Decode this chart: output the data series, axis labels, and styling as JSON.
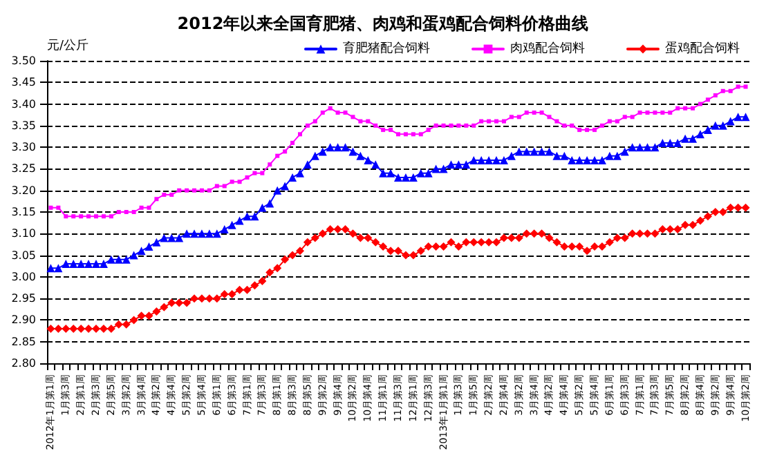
{
  "chart_data": {
    "type": "line",
    "title": "2012年以来全国育肥猪、肉鸡和蛋鸡配合饲料价格曲线",
    "ylabel": "元/公斤",
    "categories": [
      "2012年1月第1周",
      null,
      "1月第3周",
      null,
      "2月第1周",
      null,
      "2月第3周",
      null,
      "2月第5周",
      null,
      "3月第2周",
      null,
      "3月第4周",
      null,
      "4月第2周",
      null,
      "4月第4周",
      null,
      "5月第2周",
      null,
      "5月第4周",
      null,
      "6月第1周",
      null,
      "6月第3周",
      null,
      "7月第1周",
      null,
      "7月第3周",
      null,
      "8月第1周",
      null,
      "8月第3周",
      null,
      "8月第5周",
      null,
      "9月第2周",
      null,
      "9月第4周",
      null,
      "10月第2周",
      null,
      "10月第4周",
      null,
      "11月第1周",
      null,
      "11月第3周",
      null,
      "12月第1周",
      null,
      "12月第3周",
      null,
      "2013年1月第1周",
      null,
      "1月第3周",
      null,
      "1月第5周",
      null,
      "2月第2周",
      null,
      "2月第4周",
      null,
      "3月第2周",
      null,
      "3月第4周",
      null,
      "4月第2周",
      null,
      "4月第4周",
      null,
      "5月第2周",
      null,
      "5月第4周",
      null,
      "6月第1周",
      null,
      "6月第3周",
      null,
      "7月第1周",
      null,
      "7月第3周",
      null,
      "7月第5周",
      null,
      "8月第2周",
      null,
      "8月第4周",
      null,
      "9月第2周",
      null,
      "9月第4周",
      null,
      "10月第2周"
    ],
    "series": [
      {
        "name": "育肥猪配合饲料",
        "color": "#0000ff",
        "marker": "triangle",
        "values": [
          3.02,
          3.02,
          3.03,
          3.03,
          3.03,
          3.03,
          3.03,
          3.03,
          3.04,
          3.04,
          3.04,
          3.05,
          3.06,
          3.07,
          3.08,
          3.09,
          3.09,
          3.09,
          3.1,
          3.1,
          3.1,
          3.1,
          3.1,
          3.11,
          3.12,
          3.13,
          3.14,
          3.14,
          3.16,
          3.17,
          3.2,
          3.21,
          3.23,
          3.24,
          3.26,
          3.28,
          3.29,
          3.3,
          3.3,
          3.3,
          3.29,
          3.28,
          3.27,
          3.26,
          3.24,
          3.24,
          3.23,
          3.23,
          3.23,
          3.24,
          3.24,
          3.25,
          3.25,
          3.26,
          3.26,
          3.26,
          3.27,
          3.27,
          3.27,
          3.27,
          3.27,
          3.28,
          3.29,
          3.29,
          3.29,
          3.29,
          3.29,
          3.28,
          3.28,
          3.27,
          3.27,
          3.27,
          3.27,
          3.27,
          3.28,
          3.28,
          3.29,
          3.3,
          3.3,
          3.3,
          3.3,
          3.31,
          3.31,
          3.31,
          3.32,
          3.32,
          3.33,
          3.34,
          3.35,
          3.35,
          3.36,
          3.37,
          3.37
        ]
      },
      {
        "name": "肉鸡配合饲料",
        "color": "#ff00ff",
        "marker": "square",
        "values": [
          3.16,
          3.16,
          3.14,
          3.14,
          3.14,
          3.14,
          3.14,
          3.14,
          3.14,
          3.15,
          3.15,
          3.15,
          3.16,
          3.16,
          3.18,
          3.19,
          3.19,
          3.2,
          3.2,
          3.2,
          3.2,
          3.2,
          3.21,
          3.21,
          3.22,
          3.22,
          3.23,
          3.24,
          3.24,
          3.26,
          3.28,
          3.29,
          3.31,
          3.33,
          3.35,
          3.36,
          3.38,
          3.39,
          3.38,
          3.38,
          3.37,
          3.36,
          3.36,
          3.35,
          3.34,
          3.34,
          3.33,
          3.33,
          3.33,
          3.33,
          3.34,
          3.35,
          3.35,
          3.35,
          3.35,
          3.35,
          3.35,
          3.36,
          3.36,
          3.36,
          3.36,
          3.37,
          3.37,
          3.38,
          3.38,
          3.38,
          3.37,
          3.36,
          3.35,
          3.35,
          3.34,
          3.34,
          3.34,
          3.35,
          3.36,
          3.36,
          3.37,
          3.37,
          3.38,
          3.38,
          3.38,
          3.38,
          3.38,
          3.39,
          3.39,
          3.39,
          3.4,
          3.41,
          3.42,
          3.43,
          3.43,
          3.44,
          3.44
        ]
      },
      {
        "name": "蛋鸡配合饲料",
        "color": "#ff0000",
        "marker": "diamond",
        "values": [
          2.88,
          2.88,
          2.88,
          2.88,
          2.88,
          2.88,
          2.88,
          2.88,
          2.88,
          2.89,
          2.89,
          2.9,
          2.91,
          2.91,
          2.92,
          2.93,
          2.94,
          2.94,
          2.94,
          2.95,
          2.95,
          2.95,
          2.95,
          2.96,
          2.96,
          2.97,
          2.97,
          2.98,
          2.99,
          3.01,
          3.02,
          3.04,
          3.05,
          3.06,
          3.08,
          3.09,
          3.1,
          3.11,
          3.11,
          3.11,
          3.1,
          3.09,
          3.09,
          3.08,
          3.07,
          3.06,
          3.06,
          3.05,
          3.05,
          3.06,
          3.07,
          3.07,
          3.07,
          3.08,
          3.07,
          3.08,
          3.08,
          3.08,
          3.08,
          3.08,
          3.09,
          3.09,
          3.09,
          3.1,
          3.1,
          3.1,
          3.09,
          3.08,
          3.07,
          3.07,
          3.07,
          3.06,
          3.07,
          3.07,
          3.08,
          3.09,
          3.09,
          3.1,
          3.1,
          3.1,
          3.1,
          3.11,
          3.11,
          3.11,
          3.12,
          3.12,
          3.13,
          3.14,
          3.15,
          3.15,
          3.16,
          3.16,
          3.16
        ]
      }
    ],
    "ylim": [
      2.8,
      3.5
    ],
    "yticks": [
      {
        "value": 2.8,
        "label": "2.80"
      },
      {
        "value": 2.85,
        "label": "2.85"
      },
      {
        "value": 2.9,
        "label": "2.90"
      },
      {
        "value": 2.95,
        "label": "2.95"
      },
      {
        "value": 3.0,
        "label": "3.00"
      },
      {
        "value": 3.05,
        "label": "3.05"
      },
      {
        "value": 3.1,
        "label": "3.10"
      },
      {
        "value": 3.15,
        "label": "3.15"
      },
      {
        "value": 3.2,
        "label": "3.20"
      },
      {
        "value": 3.25,
        "label": "3.25"
      },
      {
        "value": 3.3,
        "label": "3.30"
      },
      {
        "value": 3.35,
        "label": "3.35"
      },
      {
        "value": 3.4,
        "label": "3.40"
      },
      {
        "value": 3.45,
        "label": "3.45"
      },
      {
        "value": 3.5,
        "label": "3.50"
      }
    ],
    "grid": "y",
    "legend": "top right",
    "line_style": "solid"
  }
}
